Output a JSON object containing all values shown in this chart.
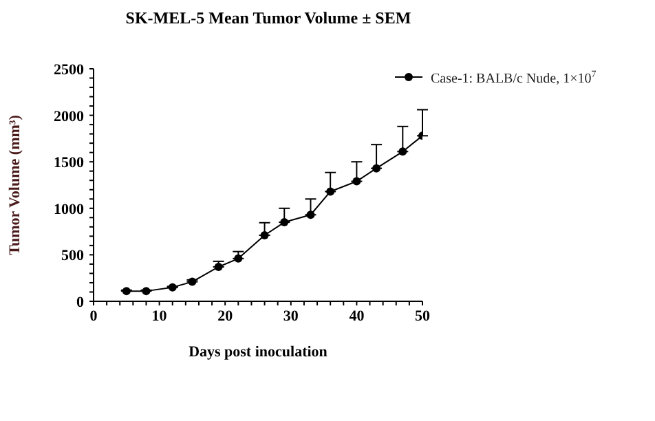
{
  "chart_data": {
    "type": "line",
    "title": "SK-MEL-5 Mean Tumor Volume ± SEM",
    "xlabel": "Days post inoculation",
    "ylabel": "Tumor Volume (mm³)",
    "x": [
      5,
      8,
      12,
      15,
      19,
      22,
      26,
      29,
      33,
      36,
      40,
      43,
      47,
      50
    ],
    "series": [
      {
        "name": "Case-1: BALB/c Nude, 1×10$^{7}$",
        "color": "#000000",
        "values": [
          110,
          110,
          150,
          210,
          370,
          460,
          710,
          850,
          930,
          1180,
          1290,
          1430,
          1610,
          1780
        ],
        "errors": [
          [
            110,
            120
          ],
          [
            110,
            120
          ],
          [
            150,
            160
          ],
          [
            210,
            230
          ],
          [
            370,
            430
          ],
          [
            460,
            535
          ],
          [
            710,
            845
          ],
          [
            850,
            1000
          ],
          [
            930,
            1100
          ],
          [
            1180,
            1385
          ],
          [
            1290,
            1500
          ],
          [
            1430,
            1685
          ],
          [
            1610,
            1880
          ],
          [
            1780,
            2060
          ]
        ]
      }
    ],
    "xlim": [
      0,
      50
    ],
    "xticks": [
      0,
      {
        "value": 2,
        "label": null
      },
      {
        "value": 4,
        "label": null
      },
      {
        "value": 6,
        "label": null
      },
      {
        "value": 8,
        "label": null
      },
      10,
      {
        "value": 12,
        "label": null
      },
      {
        "value": 14,
        "label": null
      },
      {
        "value": 16,
        "label": null
      },
      {
        "value": 18,
        "label": null
      },
      20,
      {
        "value": 22,
        "label": null
      },
      {
        "value": 24,
        "label": null
      },
      {
        "value": 26,
        "label": null
      },
      {
        "value": 28,
        "label": null
      },
      30,
      {
        "value": 32,
        "label": null
      },
      {
        "value": 34,
        "label": null
      },
      {
        "value": 36,
        "label": null
      },
      {
        "value": 38,
        "label": null
      },
      40,
      {
        "value": 42,
        "label": null
      },
      {
        "value": 44,
        "label": null
      },
      {
        "value": 46,
        "label": null
      },
      {
        "value": 48,
        "label": null
      },
      50
    ],
    "ylim": [
      0,
      2500
    ],
    "yticks": [
      0,
      {
        "value": 100,
        "label": null
      },
      {
        "value": 200,
        "label": null
      },
      {
        "value": 300,
        "label": null
      },
      {
        "value": 400,
        "label": null
      },
      500,
      {
        "value": 600,
        "label": null
      },
      {
        "value": 700,
        "label": null
      },
      {
        "value": 800,
        "label": null
      },
      {
        "value": 900,
        "label": null
      },
      1000,
      {
        "value": 1100,
        "label": null
      },
      {
        "value": 1200,
        "label": null
      },
      {
        "value": 1300,
        "label": null
      },
      {
        "value": 1400,
        "label": null
      },
      1500,
      {
        "value": 1600,
        "label": null
      },
      {
        "value": 1700,
        "label": null
      },
      {
        "value": 1800,
        "label": null
      },
      {
        "value": 1900,
        "label": null
      },
      2000,
      {
        "value": 2100,
        "label": null
      },
      {
        "value": 2200,
        "label": null
      },
      {
        "value": 2300,
        "label": null
      },
      {
        "value": 2400,
        "label": null
      },
      2500
    ],
    "legend": "top right",
    "marker": "circle",
    "line_style": "solid"
  }
}
